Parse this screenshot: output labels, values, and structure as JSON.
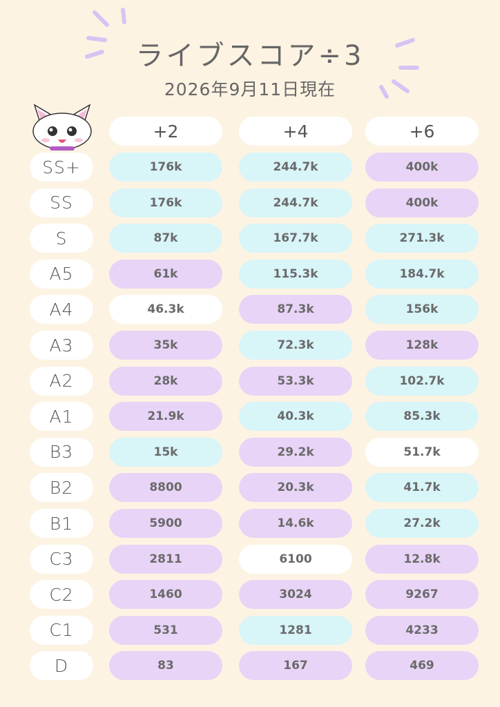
{
  "header": {
    "title": "ライブスコア÷3",
    "date": "2026年9月11日現在"
  },
  "table": {
    "columns": [
      "+2",
      "+4",
      "+6"
    ],
    "rows": [
      {
        "rank": "SS+",
        "cells": [
          {
            "text": "176k",
            "color": "#d8f5f8"
          },
          {
            "text": "244.7k",
            "color": "#d8f5f8"
          },
          {
            "text": "400k",
            "color": "#e8d4f7"
          }
        ]
      },
      {
        "rank": "SS",
        "cells": [
          {
            "text": "176k",
            "color": "#d8f5f8"
          },
          {
            "text": "244.7k",
            "color": "#d8f5f8"
          },
          {
            "text": "400k",
            "color": "#e8d4f7"
          }
        ]
      },
      {
        "rank": "S",
        "cells": [
          {
            "text": "87k",
            "color": "#d8f5f8"
          },
          {
            "text": "167.7k",
            "color": "#d8f5f8"
          },
          {
            "text": "271.3k",
            "color": "#d8f5f8"
          }
        ]
      },
      {
        "rank": "A5",
        "cells": [
          {
            "text": "61k",
            "color": "#e8d4f7"
          },
          {
            "text": "115.3k",
            "color": "#d8f5f8"
          },
          {
            "text": "184.7k",
            "color": "#d8f5f8"
          }
        ]
      },
      {
        "rank": "A4",
        "cells": [
          {
            "text": "46.3k",
            "color": "#ffffff"
          },
          {
            "text": "87.3k",
            "color": "#e8d4f7"
          },
          {
            "text": "156k",
            "color": "#d8f5f8"
          }
        ]
      },
      {
        "rank": "A3",
        "cells": [
          {
            "text": "35k",
            "color": "#e8d4f7"
          },
          {
            "text": "72.3k",
            "color": "#d8f5f8"
          },
          {
            "text": "128k",
            "color": "#e8d4f7"
          }
        ]
      },
      {
        "rank": "A2",
        "cells": [
          {
            "text": "28k",
            "color": "#e8d4f7"
          },
          {
            "text": "53.3k",
            "color": "#e8d4f7"
          },
          {
            "text": "102.7k",
            "color": "#d8f5f8"
          }
        ]
      },
      {
        "rank": "A1",
        "cells": [
          {
            "text": "21.9k",
            "color": "#e8d4f7"
          },
          {
            "text": "40.3k",
            "color": "#d8f5f8"
          },
          {
            "text": "85.3k",
            "color": "#d8f5f8"
          }
        ]
      },
      {
        "rank": "B3",
        "cells": [
          {
            "text": "15k",
            "color": "#d8f5f8"
          },
          {
            "text": "29.2k",
            "color": "#e8d4f7"
          },
          {
            "text": "51.7k",
            "color": "#ffffff"
          }
        ]
      },
      {
        "rank": "B2",
        "cells": [
          {
            "text": "8800",
            "color": "#e8d4f7"
          },
          {
            "text": "20.3k",
            "color": "#e8d4f7"
          },
          {
            "text": "41.7k",
            "color": "#d8f5f8"
          }
        ]
      },
      {
        "rank": "B1",
        "cells": [
          {
            "text": "5900",
            "color": "#e8d4f7"
          },
          {
            "text": "14.6k",
            "color": "#e8d4f7"
          },
          {
            "text": "27.2k",
            "color": "#d8f5f8"
          }
        ]
      },
      {
        "rank": "C3",
        "cells": [
          {
            "text": "2811",
            "color": "#e8d4f7"
          },
          {
            "text": "6100",
            "color": "#ffffff"
          },
          {
            "text": "12.8k",
            "color": "#e8d4f7"
          }
        ]
      },
      {
        "rank": "C2",
        "cells": [
          {
            "text": "1460",
            "color": "#e8d4f7"
          },
          {
            "text": "3024",
            "color": "#e8d4f7"
          },
          {
            "text": "9267",
            "color": "#e8d4f7"
          }
        ]
      },
      {
        "rank": "C1",
        "cells": [
          {
            "text": "531",
            "color": "#e8d4f7"
          },
          {
            "text": "1281",
            "color": "#d8f5f8"
          },
          {
            "text": "4233",
            "color": "#e8d4f7"
          }
        ]
      },
      {
        "rank": "D",
        "cells": [
          {
            "text": "83",
            "color": "#e8d4f7"
          },
          {
            "text": "167",
            "color": "#e8d4f7"
          },
          {
            "text": "469",
            "color": "#e8d4f7"
          }
        ]
      }
    ]
  }
}
